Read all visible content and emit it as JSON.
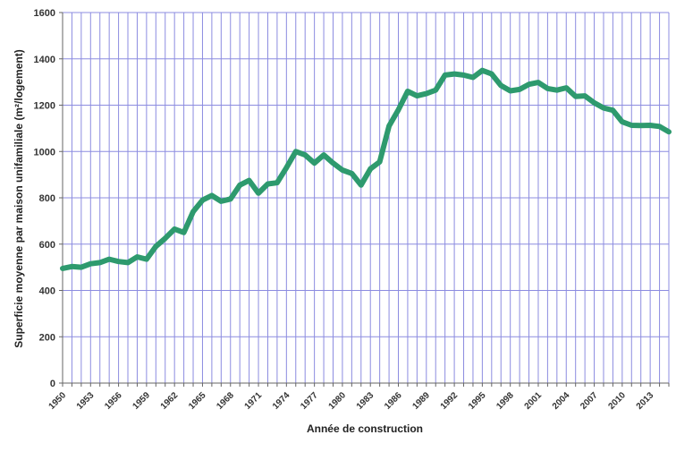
{
  "chart_data": {
    "type": "line",
    "title": "",
    "xlabel": "Année de construction",
    "ylabel": "Superficie moyenne par maison unifamiliale (m²/logement)",
    "x_ticks": [
      "1950",
      "1953",
      "1956",
      "1959",
      "1962",
      "1965",
      "1968",
      "1971",
      "1974",
      "1977",
      "1980",
      "1983",
      "1986",
      "1989",
      "1992",
      "1995",
      "1998",
      "2001",
      "2004",
      "2007",
      "2010",
      "2013"
    ],
    "y_ticks": [
      "0",
      "200",
      "400",
      "600",
      "800",
      "1000",
      "1200",
      "1400",
      "1600"
    ],
    "ylim": [
      0,
      1600
    ],
    "xlim": [
      1950,
      2015
    ],
    "grid": true,
    "line_color": "#2e9a6e",
    "grid_color": "#8c8ce0",
    "series": [
      {
        "name": "",
        "x": [
          1950,
          1951,
          1952,
          1953,
          1954,
          1955,
          1956,
          1957,
          1958,
          1959,
          1960,
          1961,
          1962,
          1963,
          1964,
          1965,
          1966,
          1967,
          1968,
          1969,
          1970,
          1971,
          1972,
          1973,
          1974,
          1975,
          1976,
          1977,
          1978,
          1979,
          1980,
          1981,
          1982,
          1983,
          1984,
          1985,
          1986,
          1987,
          1988,
          1989,
          1990,
          1991,
          1992,
          1993,
          1994,
          1995,
          1996,
          1997,
          1998,
          1999,
          2000,
          2001,
          2002,
          2003,
          2004,
          2005,
          2006,
          2007,
          2008,
          2009,
          2010,
          2011,
          2012,
          2013,
          2014,
          2015
        ],
        "values": [
          495,
          503,
          500,
          515,
          520,
          535,
          525,
          520,
          545,
          535,
          590,
          625,
          665,
          650,
          740,
          790,
          810,
          785,
          795,
          855,
          875,
          820,
          860,
          865,
          930,
          1000,
          985,
          950,
          985,
          950,
          920,
          905,
          855,
          925,
          955,
          1110,
          1180,
          1260,
          1240,
          1250,
          1265,
          1330,
          1335,
          1330,
          1320,
          1350,
          1335,
          1285,
          1262,
          1268,
          1290,
          1298,
          1272,
          1265,
          1275,
          1238,
          1240,
          1210,
          1188,
          1178,
          1128,
          1113,
          1112,
          1113,
          1108,
          1085
        ]
      }
    ]
  }
}
